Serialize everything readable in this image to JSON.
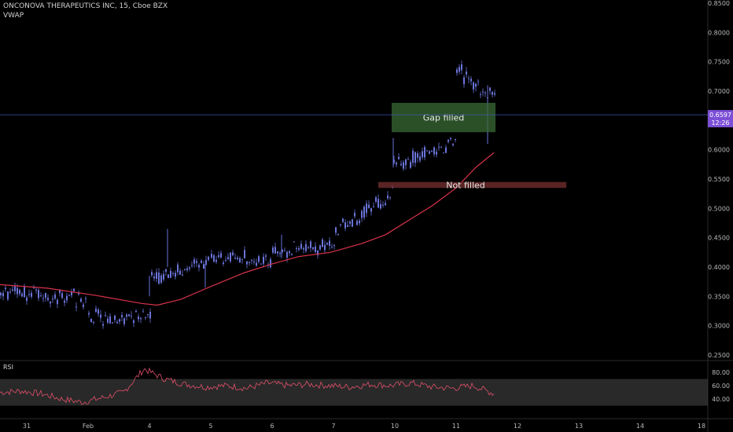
{
  "legend": {
    "symbol_line": "ONCONOVA THERAPEUTICS INC, 15, Cboe BZX",
    "indicator": "VWAP"
  },
  "rsi_label": "RSI",
  "price_axis_ticks": [
    "0.8500",
    "0.8000",
    "0.7500",
    "0.7000",
    "0.6500",
    "0.6000",
    "0.5500",
    "0.5000",
    "0.4500",
    "0.4000",
    "0.3500",
    "0.3000",
    "0.2500"
  ],
  "rsi_axis_ticks": [
    "80.00",
    "60.00",
    "40.00"
  ],
  "time_axis_ticks": [
    "31",
    "Feb",
    "4",
    "5",
    "6",
    "7",
    "10",
    "11",
    "12",
    "13",
    "14",
    "18"
  ],
  "current_price": {
    "value": "0.6597",
    "countdown": "12:26"
  },
  "annotations": {
    "gap_filled": "Gap filled",
    "not_filled": "Not filled"
  },
  "colors": {
    "candle": "#6a73d8",
    "vwap": "#d8334a",
    "rsi_line": "#e0506a",
    "rsi_band": "#4a4a4a",
    "gap_filled_box": "#3a6b35",
    "not_filled_box": "#6a2a2a",
    "price_tag": "#7c4fd6",
    "current_line": "#3d56b0"
  },
  "chart_data": {
    "type": "candlestick",
    "series_price_path": [
      [
        "Jan 30",
        0.36
      ],
      [
        "Jan 31",
        0.355
      ],
      [
        "Jan 31 late",
        0.345
      ],
      [
        "Feb 3 open",
        0.31
      ],
      [
        "Feb 3",
        0.312
      ],
      [
        "Feb 3 close",
        0.313
      ],
      [
        "Feb 4 open",
        0.37
      ],
      [
        "Feb 4 high",
        0.46
      ],
      [
        "Feb 4",
        0.41
      ],
      [
        "Feb 5",
        0.415
      ],
      [
        "Feb 6",
        0.425
      ],
      [
        "Feb 7",
        0.44
      ],
      [
        "Feb 7 late",
        0.5
      ],
      [
        "Feb 7 close",
        0.52
      ],
      [
        "Feb 10 open",
        0.59
      ],
      [
        "Feb 10",
        0.58
      ],
      [
        "Feb 10 late",
        0.61
      ],
      [
        "Feb 11 open",
        0.74
      ],
      [
        "Feb 11",
        0.72
      ],
      [
        "Feb 11 last",
        0.6597
      ]
    ],
    "vwap_path": [
      [
        "Jan 30",
        0.37
      ],
      [
        "Feb 3",
        0.345
      ],
      [
        "Feb 4",
        0.335
      ],
      [
        "Feb 5",
        0.38
      ],
      [
        "Feb 6",
        0.41
      ],
      [
        "Feb 7",
        0.425
      ],
      [
        "Feb 10",
        0.52
      ],
      [
        "Feb 11",
        0.595
      ]
    ],
    "rsi_path": [
      50,
      52,
      48,
      40,
      35,
      42,
      50,
      85,
      70,
      62,
      58,
      60,
      56,
      64,
      60,
      62,
      60,
      58,
      62,
      60,
      64,
      58,
      56,
      60,
      48
    ],
    "ylim": [
      0.25,
      0.85
    ],
    "rsi_ylim": [
      20,
      90
    ],
    "rsi_band": [
      30,
      70
    ],
    "annotations": [
      {
        "label": "Gap filled",
        "y_range": [
          0.63,
          0.68
        ]
      },
      {
        "label": "Not filled",
        "y_range": [
          0.535,
          0.545
        ]
      }
    ]
  }
}
